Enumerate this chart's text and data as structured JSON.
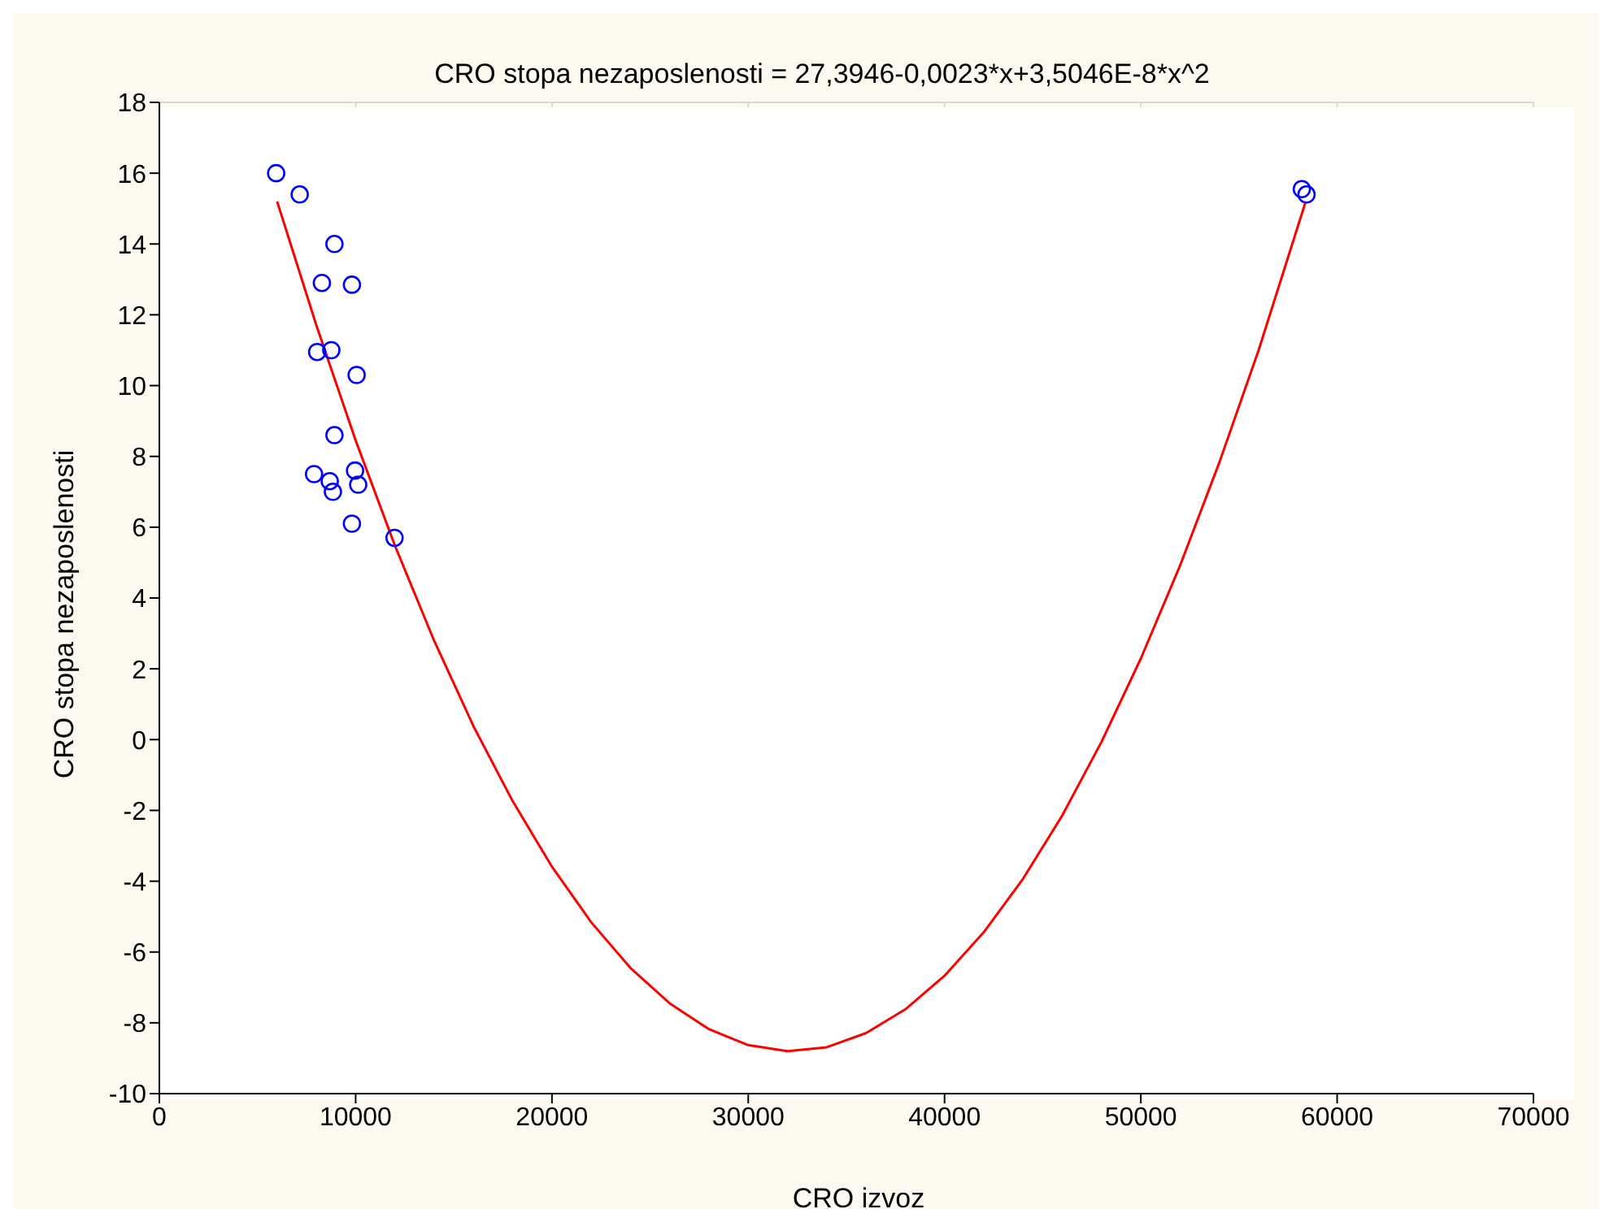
{
  "chart_data": {
    "type": "scatter",
    "title": "CRO stopa nezaposlenosti = 27,3946-0,0023*x+3,5046E-8*x^2",
    "xlabel": "CRO izvoz",
    "ylabel": "CRO stopa nezaposlenosti",
    "xlim": [
      0,
      70000
    ],
    "xticks": [
      0,
      10000,
      20000,
      30000,
      40000,
      50000,
      60000,
      70000
    ],
    "ylim": [
      -10,
      18
    ],
    "yticks": [
      -10,
      -8,
      -6,
      -4,
      -2,
      0,
      2,
      4,
      6,
      8,
      10,
      12,
      14,
      16,
      18
    ],
    "grid": true,
    "legend": false,
    "series": [
      {
        "color": "#0000ff",
        "marker": "circle",
        "x": [
          5950,
          7150,
          8920,
          8280,
          9810,
          8040,
          8760,
          10050,
          8920,
          7880,
          8680,
          8840,
          9970,
          10130,
          9810,
          11980,
          58200,
          58440
        ],
        "values": [
          16.0,
          15.4,
          14.0,
          12.9,
          12.85,
          10.95,
          11.0,
          10.3,
          8.6,
          7.5,
          7.3,
          7.0,
          7.6,
          7.2,
          6.1,
          5.7,
          15.55,
          15.4
        ]
      },
      {
        "type": "line",
        "color": "#ff0000",
        "marker": "none",
        "line_style": "solid",
        "x": [
          6000,
          8000,
          10000,
          12000,
          14000,
          16000,
          18000,
          20000,
          22000,
          24000,
          26000,
          28000,
          30000,
          32000,
          34000,
          36000,
          38000,
          40000,
          42000,
          44000,
          46000,
          48000,
          50000,
          52000,
          54000,
          56000,
          58400
        ],
        "values": [
          15.2,
          11.7,
          8.45,
          5.48,
          2.79,
          0.38,
          -1.74,
          -3.59,
          -5.16,
          -6.45,
          -7.45,
          -8.18,
          -8.63,
          -8.8,
          -8.69,
          -8.29,
          -7.62,
          -6.67,
          -5.44,
          -3.93,
          -2.14,
          -0.06,
          2.29,
          4.92,
          7.83,
          11.0,
          15.2
        ]
      }
    ]
  }
}
